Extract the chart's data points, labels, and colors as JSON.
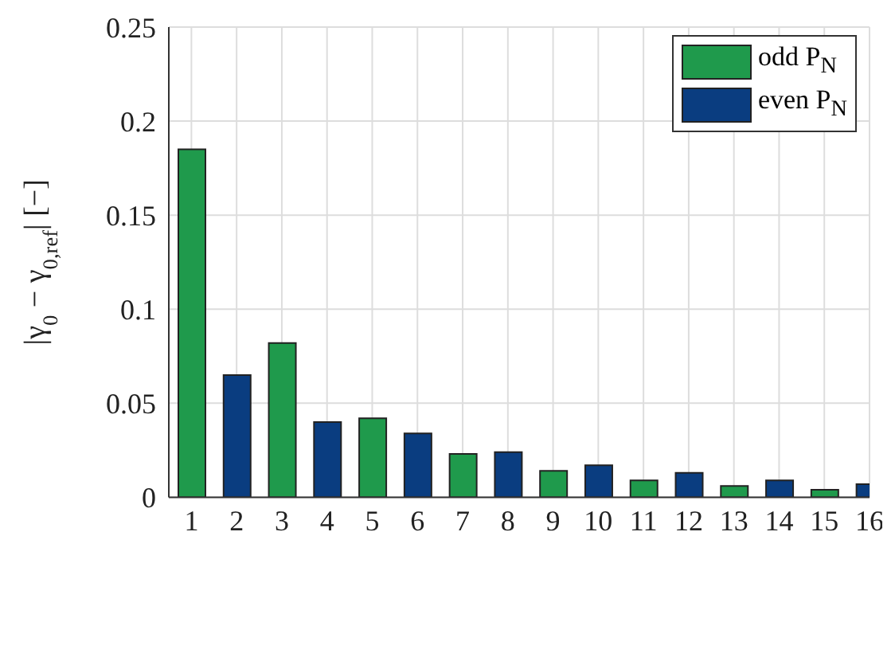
{
  "chart_data": {
    "type": "bar",
    "ylabel": "|γ$_{0}$ − γ$_{0,ref}$| [−]",
    "x": [
      1,
      2,
      3,
      4,
      5,
      6,
      7,
      8,
      9,
      10,
      11,
      12,
      13,
      14,
      15,
      16
    ],
    "xlim": [
      0.5,
      16
    ],
    "xticks": [
      1,
      2,
      3,
      4,
      5,
      6,
      7,
      8,
      9,
      10,
      11,
      12,
      13,
      14,
      15,
      16
    ],
    "ylim": [
      0,
      0.25
    ],
    "yticks": [
      0,
      0.05,
      0.1,
      0.15,
      0.2,
      0.25
    ],
    "series": [
      {
        "name": "odd P$_{N}$",
        "color": "#1f9a4c",
        "values": [
          0.185,
          null,
          0.082,
          null,
          0.042,
          null,
          0.023,
          null,
          0.014,
          null,
          0.009,
          null,
          0.006,
          null,
          0.004,
          null
        ]
      },
      {
        "name": "even P$_{N}$",
        "color": "#0a3d80",
        "values": [
          null,
          0.065,
          null,
          0.04,
          null,
          0.034,
          null,
          0.024,
          null,
          0.017,
          null,
          0.013,
          null,
          0.009,
          null,
          0.007
        ]
      }
    ],
    "grid": true,
    "legend": "top right"
  }
}
